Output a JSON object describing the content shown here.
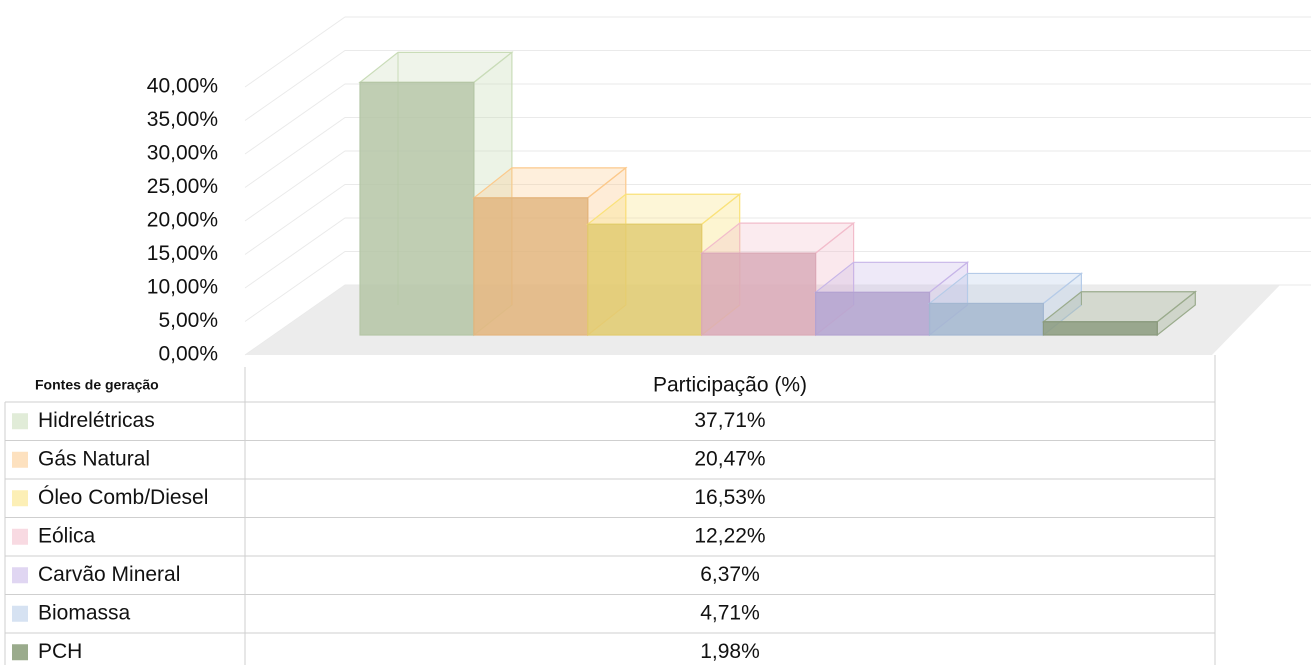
{
  "chart_data": {
    "type": "bar3d",
    "table_header_label": "Fontes de geração",
    "series_name": "Participação (%)",
    "categories": [
      "Hidrelétricas",
      "Gás Natural",
      "Óleo Comb/Diesel",
      "Eólica",
      "Carvão Mineral",
      "Biomassa",
      "PCH"
    ],
    "values": [
      37.71,
      20.47,
      16.53,
      12.22,
      6.37,
      4.71,
      1.98
    ],
    "value_labels": [
      "37,71%",
      "20,47%",
      "16,53%",
      "12,22%",
      "6,37%",
      "4,71%",
      "1,98%"
    ],
    "colors": [
      "#c9dcb8",
      "#fcc98b",
      "#fae27a",
      "#f2bccb",
      "#c7b5e8",
      "#b5cbe8",
      "#9aab8c"
    ],
    "ylim": [
      0,
      40
    ],
    "yticks": [
      {
        "value": 0,
        "label": "0,00%"
      },
      {
        "value": 5,
        "label": "5,00%"
      },
      {
        "value": 10,
        "label": "10,00%"
      },
      {
        "value": 15,
        "label": "15,00%"
      },
      {
        "value": 20,
        "label": "20,00%"
      },
      {
        "value": 25,
        "label": "25,00%"
      },
      {
        "value": 30,
        "label": "30,00%"
      },
      {
        "value": 35,
        "label": "35,00%"
      },
      {
        "value": 40,
        "label": "40,00%"
      }
    ],
    "grid": true
  }
}
